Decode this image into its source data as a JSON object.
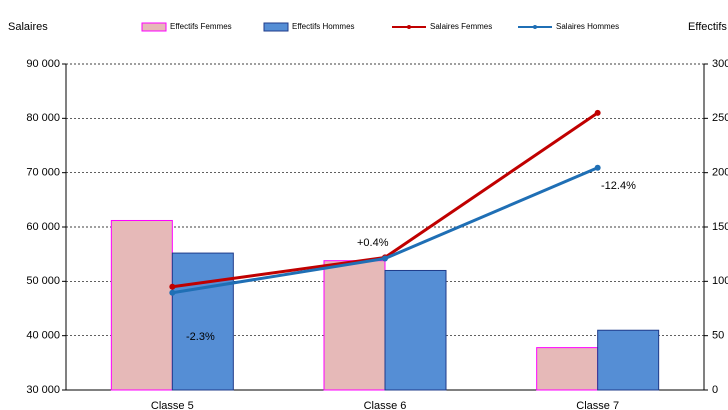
{
  "chart_data": {
    "type": "bar-line",
    "y_axis_label": "Salaires",
    "y2_axis_label": "Effectifs",
    "categories": [
      "Classe 5",
      "Classe 6",
      "Classe 7"
    ],
    "ylim": [
      30000,
      90000
    ],
    "yticks": [
      {
        "value": 30000,
        "label": "30 000"
      },
      {
        "value": 40000,
        "label": "40 000"
      },
      {
        "value": 50000,
        "label": "50 000"
      },
      {
        "value": 60000,
        "label": "60 000"
      },
      {
        "value": 70000,
        "label": "70 000"
      },
      {
        "value": 80000,
        "label": "80 000"
      },
      {
        "value": 90000,
        "label": "90 000"
      }
    ],
    "y2lim": [
      0,
      300
    ],
    "y2ticks": [
      0,
      50,
      100,
      150,
      200,
      250,
      300
    ],
    "grid": true,
    "series": [
      {
        "name": "Effectifs Femmes",
        "kind": "bar",
        "axis": "y2",
        "color": "#e6b9b8",
        "edge": "#ff00ff",
        "values": [
          156,
          119,
          39
        ]
      },
      {
        "name": "Effectifs Hommes",
        "kind": "bar",
        "axis": "y2",
        "color": "#558ed5",
        "edge": "#1f3b8a",
        "values": [
          126,
          110,
          55
        ]
      },
      {
        "name": "Salaires Femmes",
        "kind": "line",
        "color": "#c00000",
        "values": [
          49000,
          54400,
          81000
        ]
      },
      {
        "name": "Salaires Hommes",
        "kind": "line",
        "color": "#1f6fb5",
        "values": [
          47900,
          54200,
          70900
        ]
      }
    ],
    "annotations": [
      "-2.3%",
      "+0.4%",
      "-12.4%"
    ]
  }
}
